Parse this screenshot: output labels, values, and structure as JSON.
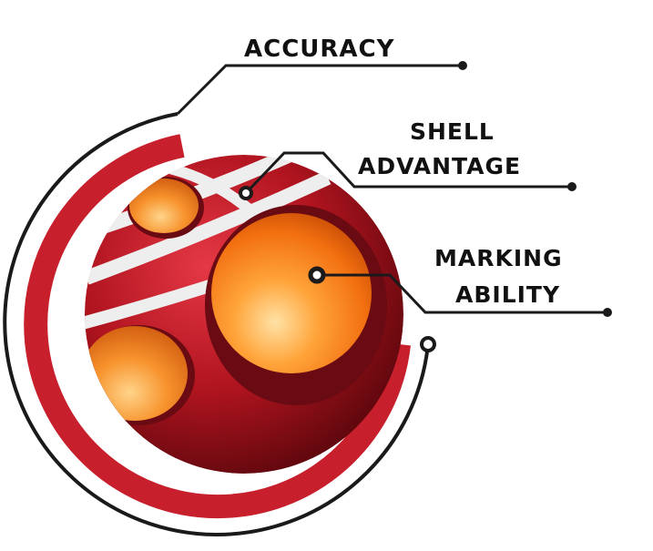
{
  "labels": {
    "accuracy": "ACCURACY",
    "shell_line1": "SHELL",
    "shell_line2": "ADVANTAGE",
    "marking_line1": "MARKING",
    "marking_line2": "ABILITY"
  },
  "colors": {
    "red": "#c81f2c",
    "dark_red": "#7a0c14",
    "orange": "#f5801e",
    "light_orange": "#ffc56a",
    "line": "#1a1a1a"
  }
}
